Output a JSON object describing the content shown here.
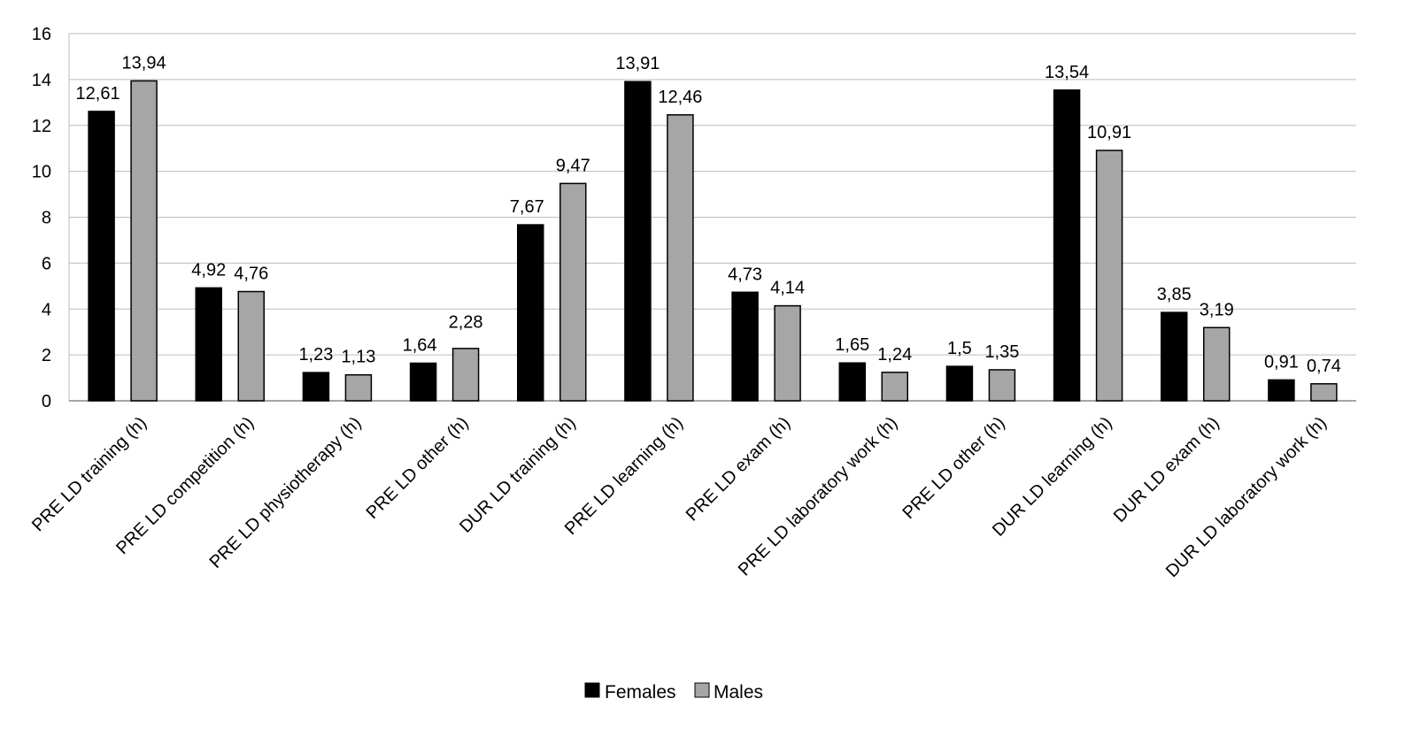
{
  "chart_data": {
    "type": "bar",
    "categories": [
      "PRE LD training (h)",
      "PRE LD competition (h)",
      "PRE LD physiotherapy (h)",
      "PRE LD other (h)",
      "DUR LD training (h)",
      "PRE LD learning (h)",
      "PRE LD exam (h)",
      "PRE LD laboratory work (h)",
      "PRE LD other (h)",
      "DUR LD learning (h)",
      "DUR LD  exam (h)",
      "DUR LD laboratory work (h)"
    ],
    "series": [
      {
        "name": "Females",
        "color": "#000000",
        "values": [
          12.61,
          4.92,
          1.23,
          1.64,
          7.67,
          13.91,
          4.73,
          1.65,
          1.5,
          13.54,
          3.85,
          0.91
        ],
        "labels": [
          "12,61",
          "4,92",
          "1,23",
          "1,64",
          "7,67",
          "13,91",
          "4,73",
          "1,65",
          "1,5",
          "13,54",
          "3,85",
          "0,91"
        ]
      },
      {
        "name": "Males",
        "color": "#a6a6a6",
        "values": [
          13.94,
          4.76,
          1.13,
          2.28,
          9.47,
          12.46,
          4.14,
          1.24,
          1.35,
          10.91,
          3.19,
          0.74
        ],
        "labels": [
          "13,94",
          "4,76",
          "1,13",
          "2,28",
          "9,47",
          "12,46",
          "4,14",
          "1,24",
          "1,35",
          "10,91",
          "3,19",
          "0,74"
        ]
      }
    ],
    "y_ticks": [
      "0",
      "2",
      "4",
      "6",
      "8",
      "10",
      "12",
      "14",
      "16"
    ],
    "ylim": [
      0,
      16
    ],
    "grid": true,
    "legend_position": "bottom-center",
    "title": "",
    "xlabel": "",
    "ylabel": ""
  }
}
